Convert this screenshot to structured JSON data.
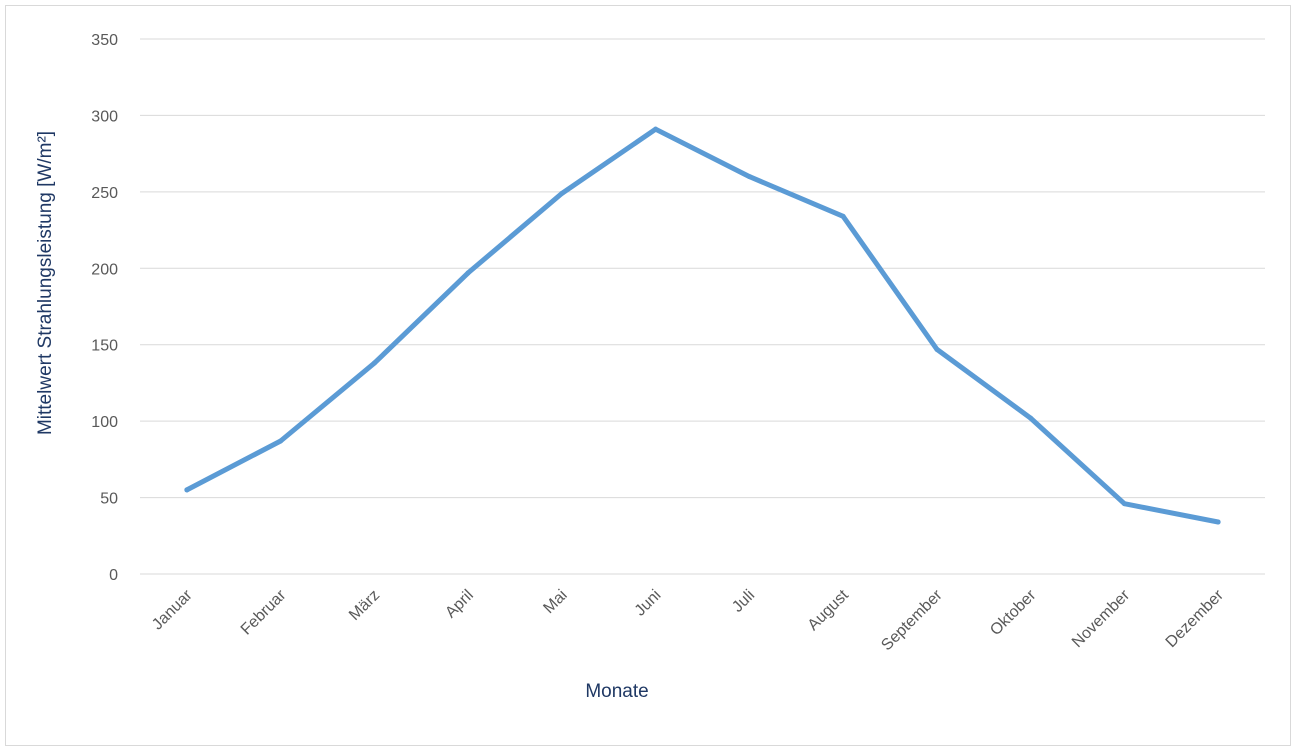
{
  "chart_data": {
    "type": "line",
    "categories": [
      "Januar",
      "Februar",
      "März",
      "April",
      "Mai",
      "Juni",
      "Juli",
      "August",
      "September",
      "Oktober",
      "November",
      "Dezember"
    ],
    "series": [
      {
        "values": [
          55,
          87,
          138,
          197,
          249,
          291,
          260,
          234,
          147,
          102,
          46,
          34
        ],
        "color": "#5b9bd5"
      }
    ],
    "xlabel": "Monate",
    "ylabel": "Mittelwert Strahlungsleistung [W/m²]",
    "ylim": [
      0,
      350
    ],
    "yticks": [
      "0",
      "50",
      "100",
      "150",
      "200",
      "250",
      "300",
      "350"
    ],
    "grid": true,
    "legend": "none",
    "colors": {
      "line": "#5b9bd5",
      "grid": "#d9d9d9",
      "tick_text": "#595959",
      "axis_title": "#1f3864"
    }
  }
}
